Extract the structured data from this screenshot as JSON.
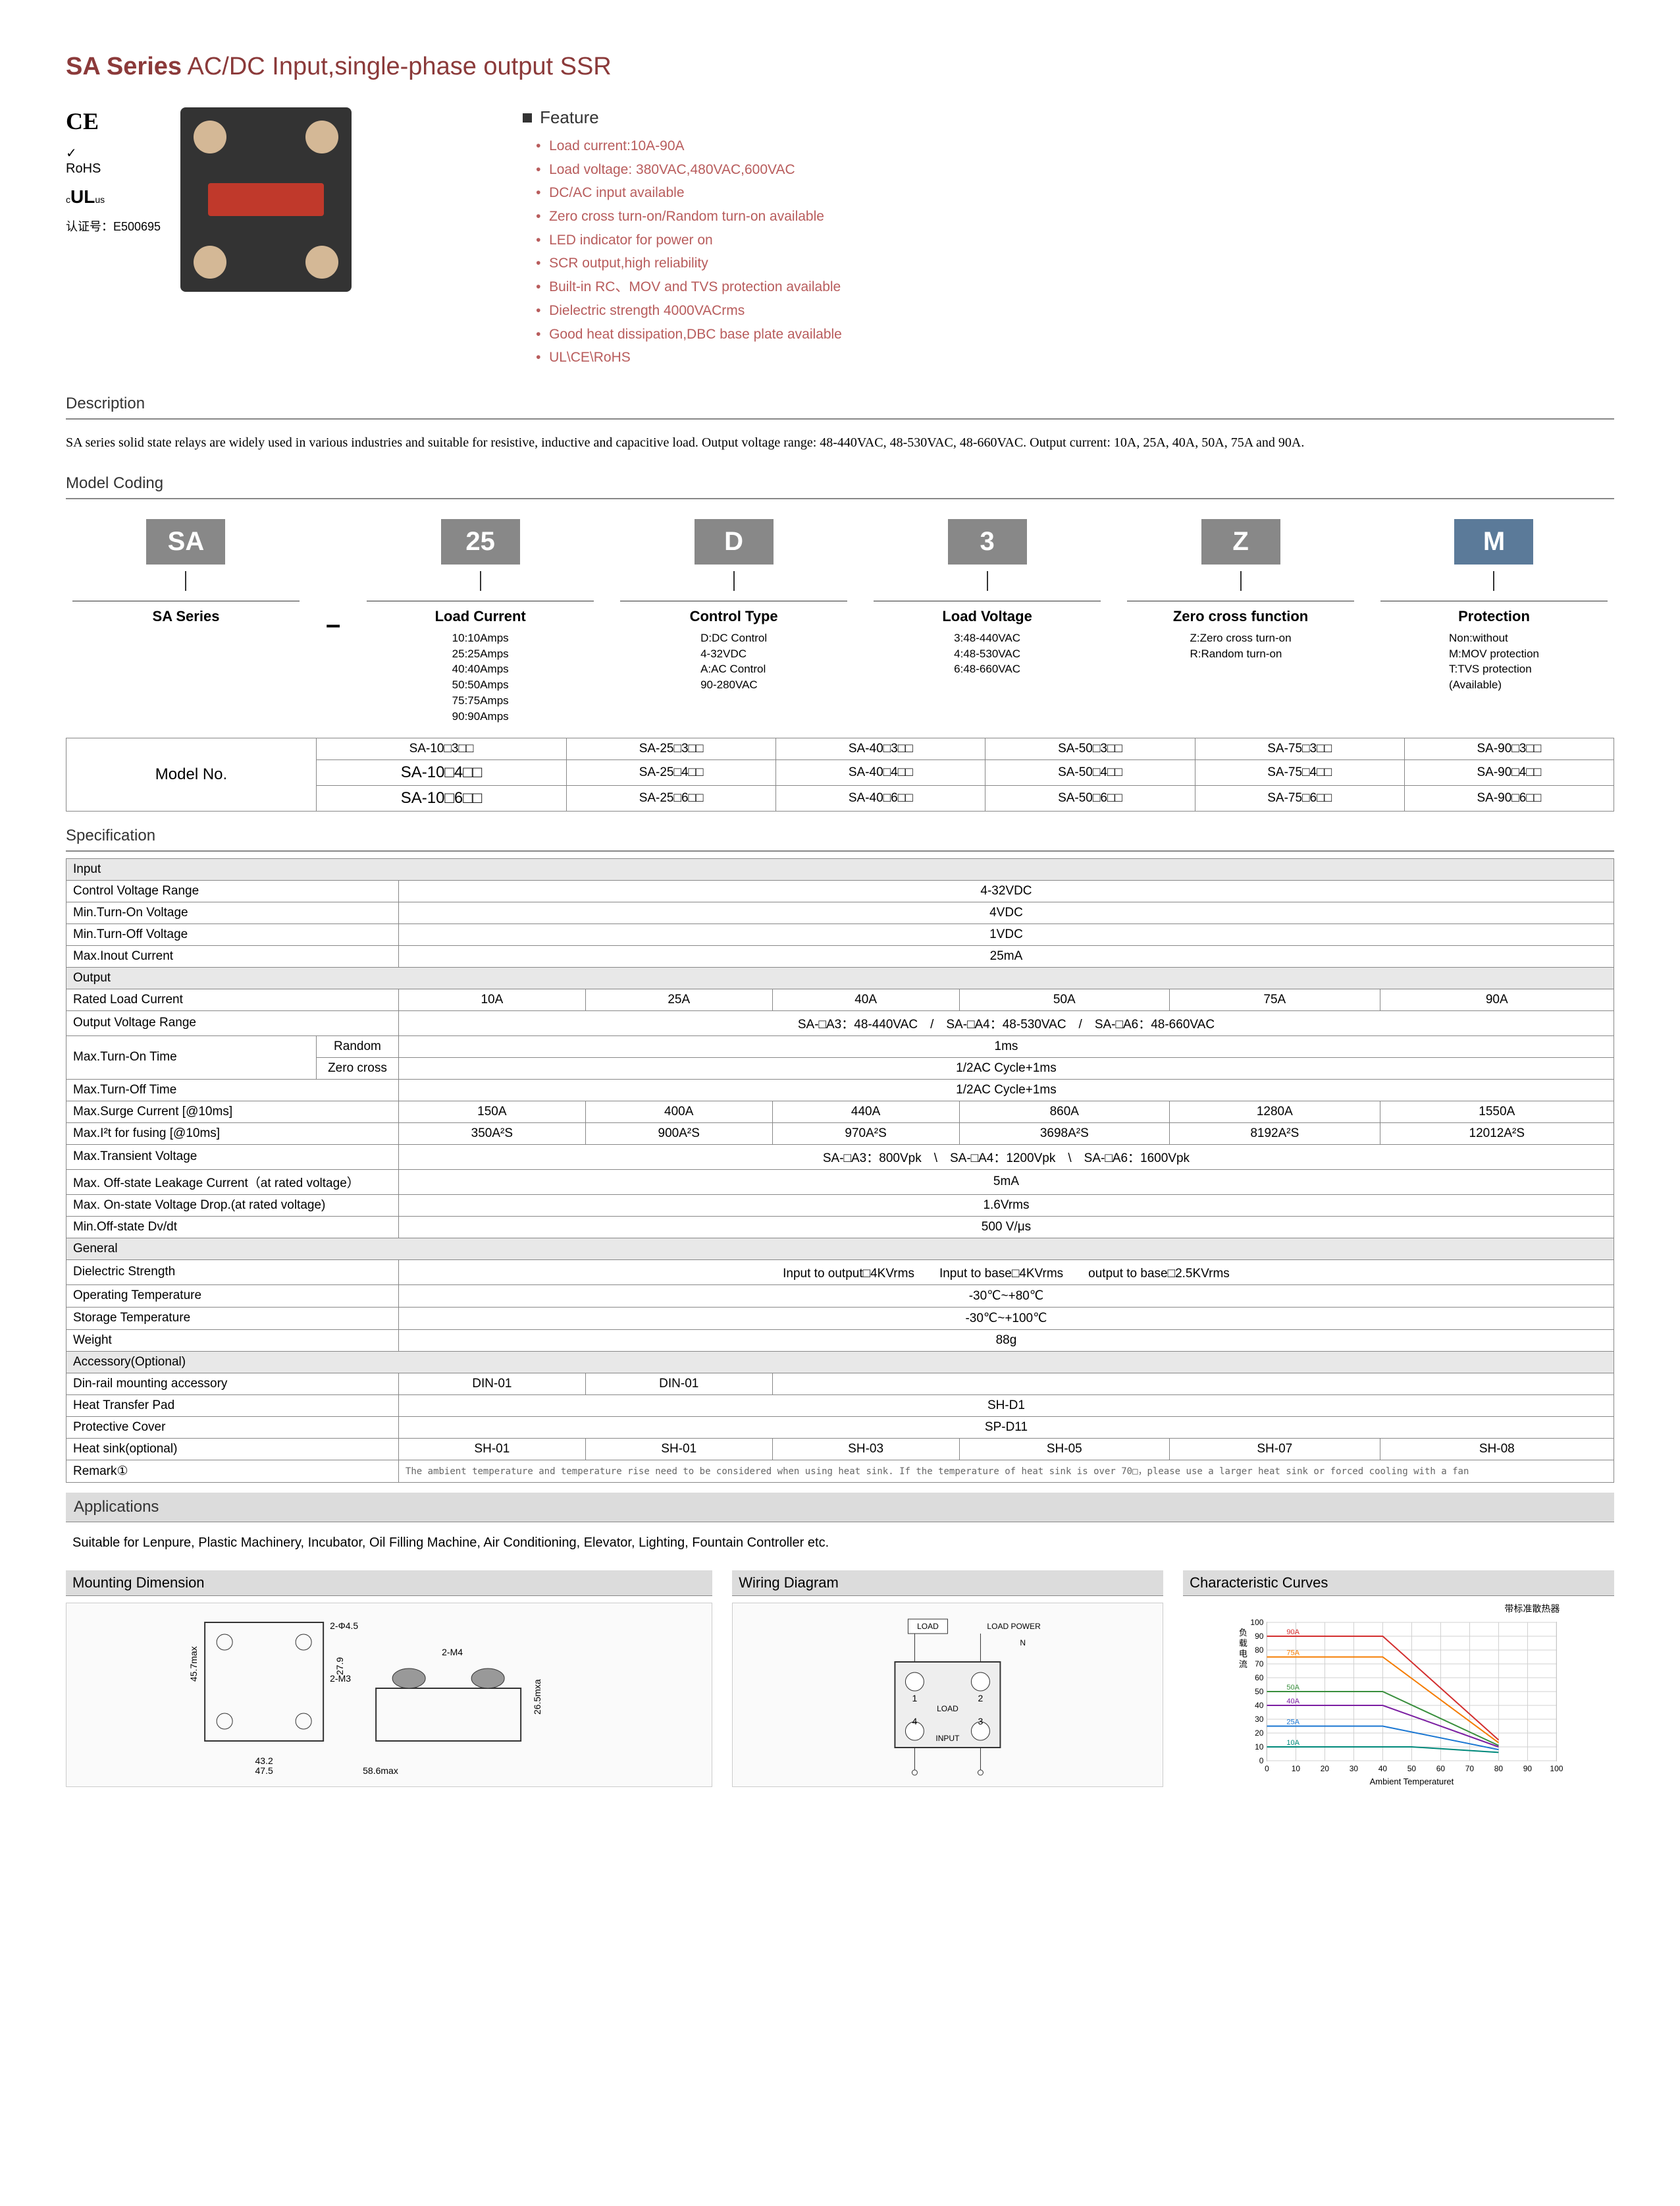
{
  "title_bold": "SA Series",
  "title_rest": " AC/DC Input,single-phase output SSR",
  "cert": {
    "ce": "CE",
    "rohs": "RoHS",
    "ul": "cULus",
    "code": "认证号：E500695"
  },
  "feature": {
    "head": "Feature",
    "items": [
      "Load current:10A-90A",
      "Load voltage: 380VAC,480VAC,600VAC",
      "DC/AC input available",
      "Zero cross turn-on/Random turn-on available",
      "LED indicator for power on",
      "SCR output,high reliability",
      "Built-in RC、MOV and TVS protection available",
      "Dielectric strength 4000VACrms",
      "Good heat dissipation,DBC base plate available",
      "UL\\CE\\RoHS"
    ]
  },
  "description": {
    "head": "Description",
    "text": "SA series solid state relays are widely used in various industries and suitable for resistive, inductive and capacitive load. Output voltage range: 48-440VAC, 48-530VAC, 48-660VAC. Output current: 10A, 25A, 40A, 50A, 75A and 90A."
  },
  "coding": {
    "head": "Model Coding",
    "items": [
      {
        "badge": "SA",
        "title": "SA Series",
        "detail": ""
      },
      {
        "badge": "25",
        "title": "Load Current",
        "detail": "10:10Amps\n25:25Amps\n40:40Amps\n50:50Amps\n75:75Amps\n90:90Amps"
      },
      {
        "badge": "D",
        "title": "Control Type",
        "detail": "D:DC Control\n4-32VDC\nA:AC Control\n90-280VAC"
      },
      {
        "badge": "3",
        "title": "Load Voltage",
        "detail": "3:48-440VAC\n4:48-530VAC\n6:48-660VAC"
      },
      {
        "badge": "Z",
        "title": "Zero cross function",
        "detail": "Z:Zero cross turn-on\nR:Random turn-on"
      },
      {
        "badge": "M",
        "title": "Protection",
        "detail": "Non:without\nM:MOV protection\nT:TVS protection\n(Available)",
        "blue": true
      }
    ]
  },
  "model_table": {
    "label": "Model No.",
    "rows": [
      [
        "SA-10□3□□",
        "SA-25□3□□",
        "SA-40□3□□",
        "SA-50□3□□",
        "SA-75□3□□",
        "SA-90□3□□"
      ],
      [
        "SA-10□4□□",
        "SA-25□4□□",
        "SA-40□4□□",
        "SA-50□4□□",
        "SA-75□4□□",
        "SA-90□4□□"
      ],
      [
        "SA-10□6□□",
        "SA-25□6□□",
        "SA-40□6□□",
        "SA-50□6□□",
        "SA-75□6□□",
        "SA-90□6□□"
      ]
    ]
  },
  "spec": {
    "head": "Specification",
    "input_head": "Input",
    "input_rows": [
      {
        "label": "Control Voltage Range",
        "val": "4-32VDC"
      },
      {
        "label": "Min.Turn-On Voltage",
        "val": "4VDC"
      },
      {
        "label": "Min.Turn-Off Voltage",
        "val": "1VDC"
      },
      {
        "label": "Max.Inout Current",
        "val": "25mA"
      }
    ],
    "output_head": "Output",
    "rated_label": "Rated Load Current",
    "rated": [
      "10A",
      "25A",
      "40A",
      "50A",
      "75A",
      "90A"
    ],
    "ovr_label": "Output Voltage Range",
    "ovr_val": "SA-□A3：48-440VAC　/　SA-□A4：48-530VAC　/　SA-□A6：48-660VAC",
    "turnon_label": "Max.Turn-On Time",
    "turnon_random": "Random",
    "turnon_random_val": "1ms",
    "turnon_zero": "Zero cross",
    "turnon_zero_val": "1/2AC Cycle+1ms",
    "turnoff_label": "Max.Turn-Off Time",
    "turnoff_val": "1/2AC Cycle+1ms",
    "surge_label": "Max.Surge Current [@10ms]",
    "surge": [
      "150A",
      "400A",
      "440A",
      "860A",
      "1280A",
      "1550A"
    ],
    "i2t_label": "Max.I²t for fusing [@10ms]",
    "i2t": [
      "350A²S",
      "900A²S",
      "970A²S",
      "3698A²S",
      "8192A²S",
      "12012A²S"
    ],
    "trans_label": "Max.Transient Voltage",
    "trans_val": "SA-□A3：800Vpk　\\　SA-□A4：1200Vpk　\\　SA-□A6：1600Vpk",
    "leak_label": "Max. Off-state Leakage Current（at rated voltage）",
    "leak_val": "5mA",
    "drop_label": "Max. On-state Voltage Drop.(at rated voltage)",
    "drop_val": "1.6Vrms",
    "dvdt_label": "Min.Off-state Dv/dt",
    "dvdt_val": "500 V/μs",
    "general_head": "General",
    "diel_label": "Dielectric Strength",
    "diel_val": "Input to output□4KVrms　　Input to base□4KVrms　　output to base□2.5KVrms",
    "optemp_label": "Operating Temperature",
    "optemp_val": "-30℃~+80℃",
    "sttemp_label": "Storage Temperature",
    "sttemp_val": "-30℃~+100℃",
    "weight_label": "Weight",
    "weight_val": "88g",
    "acc_head": "Accessory(Optional)",
    "din_label": "Din-rail mounting accessory",
    "din": [
      "DIN-01",
      "DIN-01"
    ],
    "pad_label": "Heat Transfer Pad",
    "pad_val": "SH-D1",
    "cover_label": "Protective Cover",
    "cover_val": "SP-D11",
    "sink_label": "Heat sink(optional)",
    "sink": [
      "SH-01",
      "SH-01",
      "SH-03",
      "SH-05",
      "SH-07",
      "SH-08"
    ],
    "remark_label": "Remark①",
    "remark_val": "The ambient temperature and temperature rise need to be considered when using heat sink. If the temperature of heat sink is over 70□，please use a larger heat sink or forced cooling with a fan"
  },
  "apps": {
    "head": "Applications",
    "text": "Suitable for Lenpure, Plastic Machinery, Incubator, Oil Filling Machine, Air Conditioning, Elevator, Lighting, Fountain Controller etc."
  },
  "mounting": {
    "head": "Mounting Dimension",
    "dims": [
      "45.7max",
      "25.4",
      "27.9",
      "43.2",
      "47.5",
      "58.6max",
      "26.5mxa",
      "2-Φ4.5",
      "2-M3",
      "2-M4"
    ]
  },
  "wiring": {
    "head": "Wiring Diagram",
    "labels": [
      "LOAD",
      "LOAD POWER",
      "N",
      "LOAD",
      "INPUT",
      "1",
      "2",
      "3",
      "4"
    ]
  },
  "curves": {
    "head": "Characteristic Curves",
    "title": "带标准散热器",
    "ylabel": "负载电流",
    "xlabel": "Ambient Temperaturet",
    "ylim": [
      0,
      100
    ],
    "xlim": [
      0,
      100
    ],
    "ytick": [
      0,
      10,
      20,
      30,
      40,
      50,
      60,
      70,
      80,
      90,
      100
    ],
    "xtick": [
      0,
      10,
      20,
      30,
      40,
      50,
      60,
      70,
      80,
      90,
      100
    ],
    "grid_color": "#d0d0d0",
    "background": "#ffffff",
    "series": [
      {
        "label": "90A",
        "color": "#d32f2f",
        "points": [
          [
            0,
            90
          ],
          [
            40,
            90
          ],
          [
            80,
            15
          ]
        ]
      },
      {
        "label": "75A",
        "color": "#f57c00",
        "points": [
          [
            0,
            75
          ],
          [
            40,
            75
          ],
          [
            80,
            13
          ]
        ]
      },
      {
        "label": "50A",
        "color": "#388e3c",
        "points": [
          [
            0,
            50
          ],
          [
            40,
            50
          ],
          [
            80,
            11
          ]
        ]
      },
      {
        "label": "40A",
        "color": "#7b1fa2",
        "points": [
          [
            0,
            40
          ],
          [
            40,
            40
          ],
          [
            80,
            10
          ]
        ]
      },
      {
        "label": "25A",
        "color": "#1976d2",
        "points": [
          [
            0,
            25
          ],
          [
            40,
            25
          ],
          [
            80,
            8
          ]
        ]
      },
      {
        "label": "10A",
        "color": "#00897b",
        "points": [
          [
            0,
            10
          ],
          [
            50,
            10
          ],
          [
            80,
            6
          ]
        ]
      }
    ]
  }
}
